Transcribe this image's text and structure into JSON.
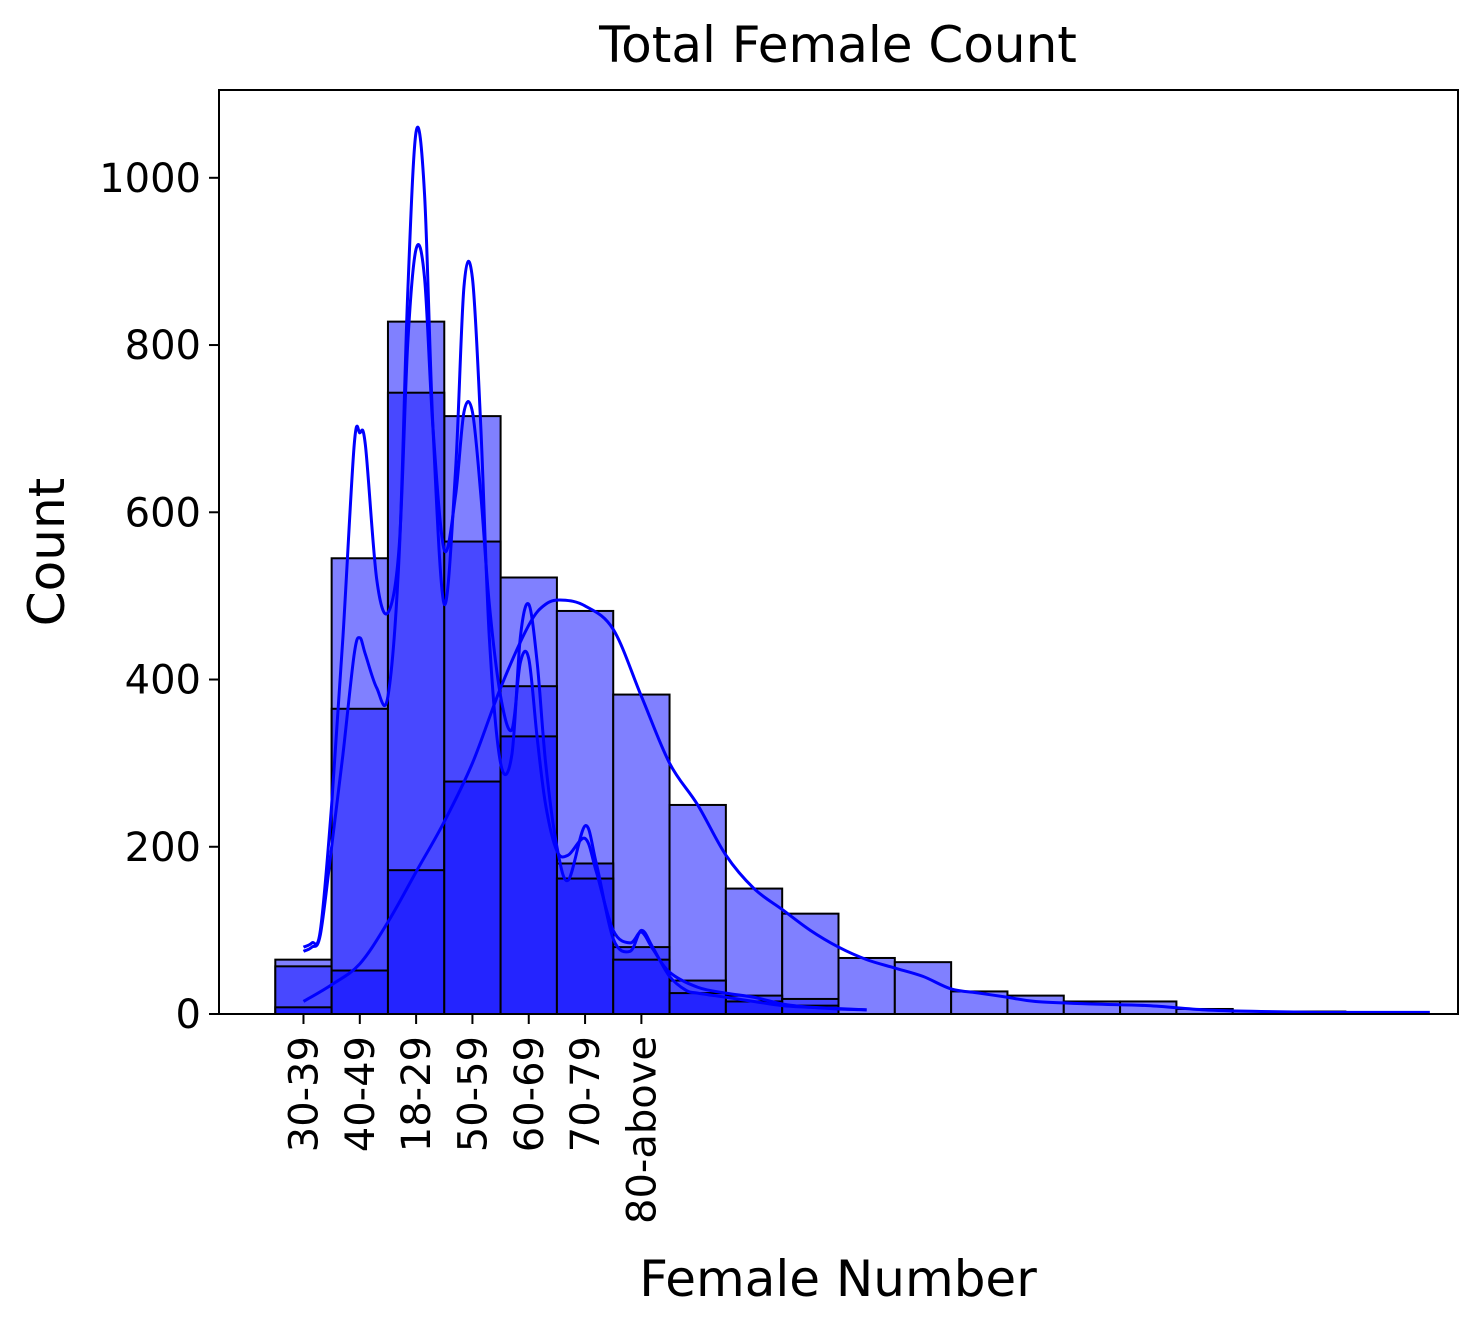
{
  "chart_data": {
    "type": "histogram",
    "title": "Total Female Count",
    "xlabel": "Female Number",
    "ylabel": "Count",
    "xlim": [
      -1.5,
      20.5
    ],
    "ylim": [
      0,
      1105
    ],
    "x_tick_labels": [
      "30-39",
      "40-49",
      "18-29",
      "50-59",
      "60-69",
      "70-79",
      "80-above"
    ],
    "y_ticks": [
      0,
      200,
      400,
      600,
      800,
      1000
    ],
    "bin_width": 1,
    "grid": false,
    "series": [
      {
        "bin_starts": [
          0,
          1,
          2,
          3,
          4,
          5,
          6,
          7,
          8,
          9,
          10,
          11,
          12,
          13,
          14,
          15,
          16,
          17,
          18,
          19
        ],
        "values": [
          65,
          545,
          828,
          715,
          522,
          482,
          382,
          250,
          150,
          120,
          67,
          62,
          27,
          22,
          15,
          15,
          6,
          3,
          3,
          2
        ],
        "color": "#8080ff",
        "kde": [
          [
            0,
            15
          ],
          [
            0.5,
            35
          ],
          [
            1,
            60
          ],
          [
            1.5,
            110
          ],
          [
            2,
            170
          ],
          [
            2.5,
            230
          ],
          [
            3,
            300
          ],
          [
            3.5,
            390
          ],
          [
            4,
            465
          ],
          [
            4.3,
            490
          ],
          [
            4.6,
            495
          ],
          [
            5,
            488
          ],
          [
            5.5,
            460
          ],
          [
            6,
            380
          ],
          [
            6.5,
            300
          ],
          [
            7,
            250
          ],
          [
            7.5,
            190
          ],
          [
            8,
            150
          ],
          [
            8.5,
            125
          ],
          [
            9,
            100
          ],
          [
            9.5,
            80
          ],
          [
            10,
            65
          ],
          [
            10.5,
            55
          ],
          [
            11,
            45
          ],
          [
            11.5,
            30
          ],
          [
            12,
            25
          ],
          [
            12.5,
            20
          ],
          [
            13,
            15
          ],
          [
            14,
            12
          ],
          [
            15,
            10
          ],
          [
            16,
            5
          ],
          [
            17,
            3
          ],
          [
            18,
            2
          ],
          [
            19,
            2
          ],
          [
            20,
            2
          ]
        ]
      },
      {
        "bin_starts": [
          0,
          1,
          2,
          3,
          4,
          5,
          6,
          7,
          8,
          9
        ],
        "values": [
          57,
          365,
          743,
          565,
          392,
          180,
          80,
          40,
          22,
          18
        ],
        "color": "#4848ff",
        "kde": [
          [
            0,
            80
          ],
          [
            0.15,
            85
          ],
          [
            0.3,
            100
          ],
          [
            0.5,
            250
          ],
          [
            0.7,
            450
          ],
          [
            0.9,
            680
          ],
          [
            1,
            695
          ],
          [
            1.1,
            680
          ],
          [
            1.3,
            520
          ],
          [
            1.5,
            480
          ],
          [
            1.7,
            560
          ],
          [
            1.85,
            800
          ],
          [
            2,
            915
          ],
          [
            2.15,
            880
          ],
          [
            2.3,
            700
          ],
          [
            2.5,
            555
          ],
          [
            2.7,
            620
          ],
          [
            2.85,
            720
          ],
          [
            3,
            720
          ],
          [
            3.15,
            620
          ],
          [
            3.3,
            490
          ],
          [
            3.5,
            380
          ],
          [
            3.7,
            340
          ],
          [
            3.85,
            420
          ],
          [
            4,
            425
          ],
          [
            4.15,
            330
          ],
          [
            4.3,
            250
          ],
          [
            4.5,
            195
          ],
          [
            4.7,
            190
          ],
          [
            5,
            210
          ],
          [
            5.2,
            170
          ],
          [
            5.5,
            100
          ],
          [
            5.8,
            85
          ],
          [
            6,
            98
          ],
          [
            6.2,
            78
          ],
          [
            6.5,
            50
          ],
          [
            7,
            32
          ],
          [
            7.5,
            25
          ],
          [
            8,
            20
          ],
          [
            8.5,
            12
          ],
          [
            9,
            8
          ],
          [
            9.5,
            6
          ],
          [
            10,
            5
          ]
        ]
      },
      {
        "bin_starts": [
          0,
          1,
          2,
          3,
          4,
          5,
          6,
          7,
          8,
          9
        ],
        "values": [
          8,
          52,
          172,
          278,
          332,
          162,
          65,
          25,
          15,
          10
        ],
        "color": "#2424ff",
        "kde": [
          [
            0,
            75
          ],
          [
            0.15,
            80
          ],
          [
            0.3,
            95
          ],
          [
            0.5,
            200
          ],
          [
            0.7,
            310
          ],
          [
            0.9,
            430
          ],
          [
            1,
            450
          ],
          [
            1.1,
            430
          ],
          [
            1.3,
            390
          ],
          [
            1.5,
            380
          ],
          [
            1.7,
            550
          ],
          [
            1.85,
            860
          ],
          [
            2,
            1055
          ],
          [
            2.15,
            980
          ],
          [
            2.3,
            700
          ],
          [
            2.5,
            490
          ],
          [
            2.7,
            650
          ],
          [
            2.85,
            870
          ],
          [
            3,
            880
          ],
          [
            3.15,
            700
          ],
          [
            3.3,
            450
          ],
          [
            3.5,
            300
          ],
          [
            3.7,
            310
          ],
          [
            3.85,
            450
          ],
          [
            4,
            490
          ],
          [
            4.15,
            420
          ],
          [
            4.3,
            300
          ],
          [
            4.5,
            200
          ],
          [
            4.7,
            160
          ],
          [
            5,
            225
          ],
          [
            5.2,
            180
          ],
          [
            5.5,
            90
          ],
          [
            5.8,
            75
          ],
          [
            6,
            100
          ],
          [
            6.2,
            80
          ],
          [
            6.5,
            45
          ],
          [
            6.8,
            28
          ],
          [
            7,
            25
          ],
          [
            7.5,
            20
          ],
          [
            8,
            15
          ],
          [
            8.5,
            10
          ],
          [
            9,
            8
          ],
          [
            10,
            5
          ]
        ]
      }
    ]
  }
}
